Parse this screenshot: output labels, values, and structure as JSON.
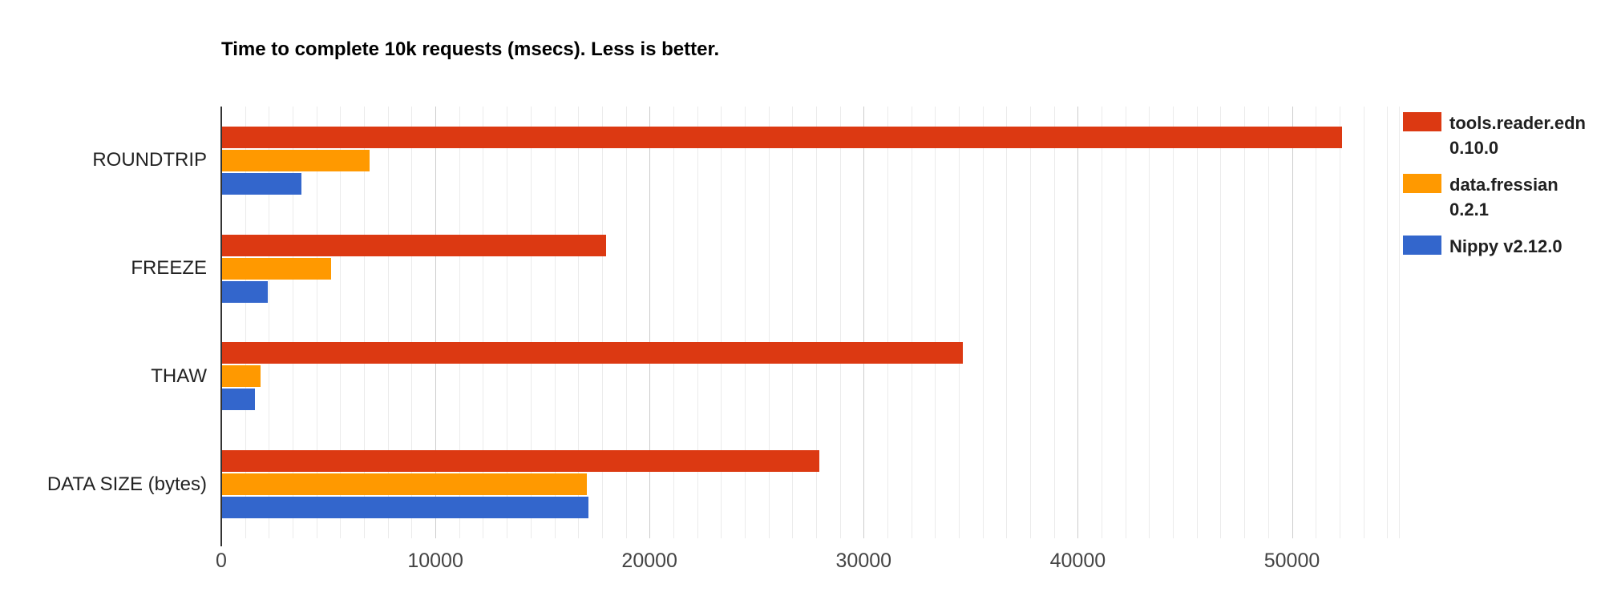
{
  "chart_data": {
    "type": "bar",
    "orientation": "horizontal",
    "title": "Time to complete 10k requests (msecs). Less is better.",
    "categories": [
      "ROUNDTRIP",
      "FREEZE",
      "THAW",
      "DATA SIZE (bytes)"
    ],
    "series": [
      {
        "name": "tools.reader.edn 0.10.0",
        "color": "#DC3912",
        "values": [
          52300,
          17950,
          34600,
          27900
        ]
      },
      {
        "name": "data.fressian 0.2.1",
        "color": "#FF9900",
        "values": [
          6900,
          5100,
          1800,
          17050
        ]
      },
      {
        "name": "Nippy v2.12.0",
        "color": "#3366CC",
        "values": [
          3700,
          2150,
          1550,
          17100
        ]
      }
    ],
    "x_axis": {
      "min": 0,
      "max": 55000,
      "tick_interval": 10000,
      "tick_labels": [
        "0",
        "10000",
        "20000",
        "30000",
        "40000",
        "50000"
      ]
    },
    "legend_position": "right",
    "grid": true,
    "colors": {
      "axis_line": "#333333",
      "major_gridline": "#cccccc",
      "minor_gridline": "#ebebeb",
      "tick_label": "#444444",
      "category_label": "#222222",
      "legend_text": "#212121",
      "title_text": "#000000",
      "background": "#ffffff"
    }
  }
}
